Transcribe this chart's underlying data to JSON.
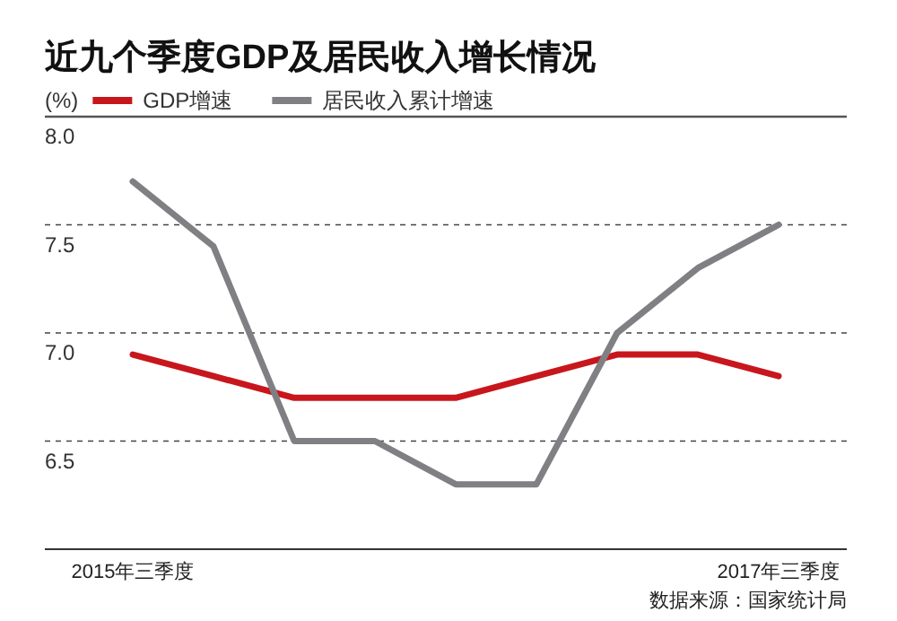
{
  "chart_data": {
    "type": "line",
    "title": "近九个季度GDP及居民收入增长情况",
    "ylabel": "(%)",
    "categories": [
      "2015年三季度",
      null,
      null,
      null,
      null,
      null,
      null,
      null,
      "2017年三季度"
    ],
    "series": [
      {
        "name": "GDP增速",
        "color": "#c8161d",
        "values": [
          6.9,
          6.8,
          6.7,
          6.7,
          6.7,
          6.8,
          6.9,
          6.9,
          6.8
        ]
      },
      {
        "name": "居民收入累计增速",
        "color": "#808084",
        "values": [
          7.7,
          7.4,
          6.5,
          6.5,
          6.3,
          6.3,
          7.0,
          7.3,
          7.5
        ]
      }
    ],
    "ylim": [
      6.0,
      8.0
    ],
    "yticks": [
      6.5,
      {
        "value": 7,
        "label": "7.0"
      },
      7.5,
      {
        "value": 8,
        "label": "8.0"
      }
    ],
    "grid": "y",
    "legend": "top left",
    "marker": "none",
    "line_style": "solid",
    "annotations": [
      "数据来源：国家统计局"
    ]
  }
}
